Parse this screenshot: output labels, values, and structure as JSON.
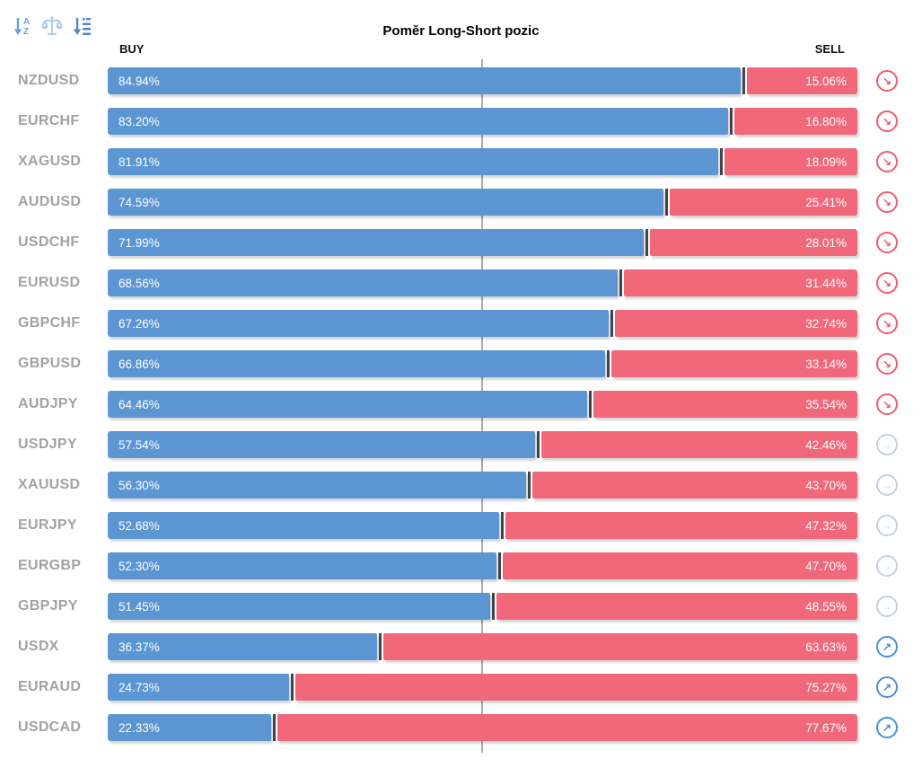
{
  "title": "Poměr Long-Short pozic",
  "axis": {
    "buy_label": "BUY",
    "sell_label": "SELL"
  },
  "toolbar": {
    "icons": [
      "sort-alphabetical-icon",
      "balance-scale-icon",
      "sort-amount-icon"
    ]
  },
  "icons": {
    "trend_glyphs": {
      "down": "↘",
      "flat": "→",
      "up": "↗"
    }
  },
  "colors": {
    "buy_bar": "#5b96d3",
    "sell_bar": "#f1687a",
    "segment_divider": "#454349",
    "pair_label": "#a2a2a2",
    "gridline": "#ababab",
    "trend_down": "#ef5c70",
    "trend_flat": "#c5d1dd",
    "trend_up": "#4a8fd6"
  },
  "chart_data": {
    "type": "bar",
    "variant": "horizontal-stacked",
    "title": "Poměr Long-Short pozic",
    "xlim": [
      0,
      100
    ],
    "center_gridline": 50,
    "legend_position": "top (BUY left, SELL right)",
    "categories": [
      "NZDUSD",
      "EURCHF",
      "XAGUSD",
      "AUDUSD",
      "USDCHF",
      "EURUSD",
      "GBPCHF",
      "GBPUSD",
      "AUDJPY",
      "USDJPY",
      "XAUUSD",
      "EURJPY",
      "EURGBP",
      "GBPJPY",
      "USDX",
      "EURAUD",
      "USDCAD"
    ],
    "series": [
      {
        "name": "BUY",
        "color": "#5b96d3",
        "values": [
          84.94,
          83.2,
          81.91,
          74.59,
          71.99,
          68.56,
          67.26,
          66.86,
          64.46,
          57.54,
          56.3,
          52.68,
          52.3,
          51.45,
          36.37,
          24.73,
          22.33
        ],
        "labels": [
          "84.94%",
          "83.20%",
          "81.91%",
          "74.59%",
          "71.99%",
          "68.56%",
          "67.26%",
          "66.86%",
          "64.46%",
          "57.54%",
          "56.30%",
          "52.68%",
          "52.30%",
          "51.45%",
          "36.37%",
          "24.73%",
          "22.33%"
        ]
      },
      {
        "name": "SELL",
        "color": "#f1687a",
        "values": [
          15.06,
          16.8,
          18.09,
          25.41,
          28.01,
          31.44,
          32.74,
          33.14,
          35.54,
          42.46,
          43.7,
          47.32,
          47.7,
          48.55,
          63.63,
          75.27,
          77.67
        ],
        "labels": [
          "15.06%",
          "16.80%",
          "18.09%",
          "25.41%",
          "28.01%",
          "31.44%",
          "32.74%",
          "33.14%",
          "35.54%",
          "42.46%",
          "43.70%",
          "47.32%",
          "47.70%",
          "48.55%",
          "63.63%",
          "75.27%",
          "77.67%"
        ]
      }
    ],
    "trend_per_row": [
      "down",
      "down",
      "down",
      "down",
      "down",
      "down",
      "down",
      "down",
      "down",
      "flat",
      "flat",
      "flat",
      "flat",
      "flat",
      "up",
      "up",
      "up"
    ]
  }
}
